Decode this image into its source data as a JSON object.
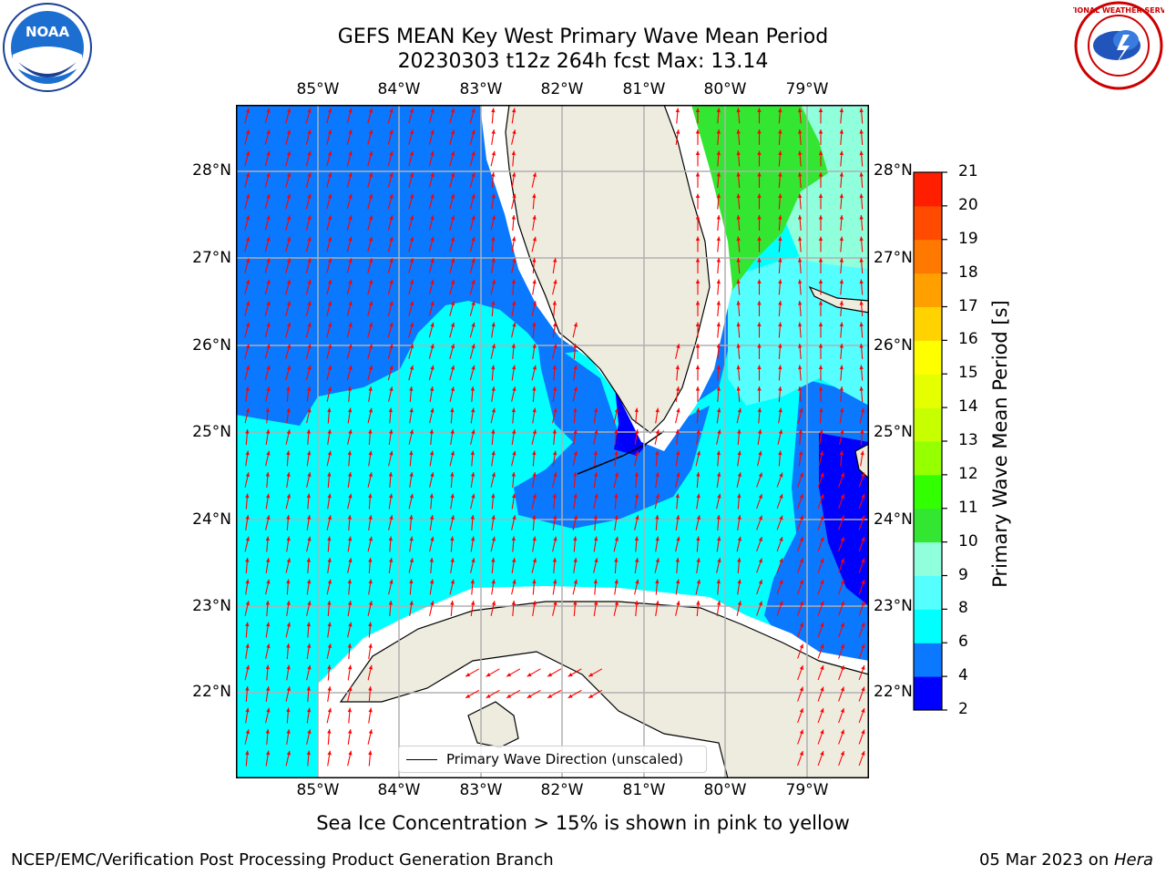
{
  "title": {
    "line1": "GEFS MEAN Key West Primary Wave Mean Period",
    "line2": "20230303 t12z 264h fcst   Max: 13.14"
  },
  "map": {
    "lon_ticks": [
      "85°W",
      "84°W",
      "83°W",
      "82°W",
      "81°W",
      "80°W",
      "79°W"
    ],
    "lat_ticks": [
      "28°N",
      "27°N",
      "26°N",
      "25°N",
      "24°N",
      "23°N",
      "22°N"
    ],
    "legend_label": "Primary Wave Direction (unscaled)",
    "arrow_color": "#ff0000",
    "land_color": "#eeecdf"
  },
  "colorbar": {
    "label": "Primary Wave Mean Period [s]",
    "ticks": [
      "2",
      "4",
      "6",
      "8",
      "9",
      "10",
      "11",
      "12",
      "13",
      "14",
      "15",
      "16",
      "17",
      "18",
      "19",
      "20",
      "21"
    ],
    "colors": [
      "#0000ff",
      "#0a78ff",
      "#00ffff",
      "#55ffff",
      "#90ffdc",
      "#32e632",
      "#32ff00",
      "#96ff00",
      "#c8ff00",
      "#e6ff00",
      "#ffff00",
      "#ffd200",
      "#ffa000",
      "#ff7800",
      "#ff4b00",
      "#ff1e00"
    ]
  },
  "notice": "Sea Ice Concentration > 15% is shown in pink to yellow",
  "footer": {
    "left": "NCEP/EMC/Verification Post Processing Product Generation Branch",
    "date": "05 Mar 2023 on ",
    "machine": "Hera"
  },
  "logos": {
    "noaa": "NOAA",
    "nws": "NATIONAL WEATHER SERVICE"
  }
}
